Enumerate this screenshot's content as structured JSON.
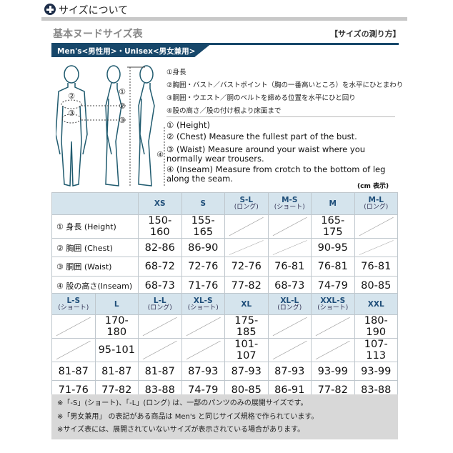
{
  "header": {
    "title": "サイズについて",
    "icon": "plus-circle-icon",
    "subtitle": "基本ヌードサイズ表",
    "howto_link": "【サイズの測り方】"
  },
  "banner": {
    "label": "Men's<男性用>・Unisex<男女兼用>",
    "color": "#17476a"
  },
  "figure": {
    "markers": [
      "①",
      "②",
      "③",
      "②",
      "③",
      "④"
    ]
  },
  "instructions_jp": [
    "①身長",
    "②胸囲・バスト／バストポイント（胸の一番高いところ）を水平にひとまわり",
    "③胴囲・ウエスト／胴のベルトを締める位置を水平にひと回り",
    "④股の高さ／股の付け根より床面まで"
  ],
  "instructions_en": [
    "① (Height)",
    "② (Chest) Measure the fullest part of the bust.",
    "③ (Waist) Measure around your waist where you normally wear trousers.",
    "④ (Inseam) Measure from crotch to the bottom of leg along the seam."
  ],
  "unit": "(cm 表示)",
  "table1": {
    "headers": [
      {
        "size": "XS",
        "sub": ""
      },
      {
        "size": "S",
        "sub": ""
      },
      {
        "size": "S-L",
        "sub": "(ロング)"
      },
      {
        "size": "M-S",
        "sub": "(ショート)"
      },
      {
        "size": "M",
        "sub": ""
      },
      {
        "size": "M-L",
        "sub": "(ロング)"
      }
    ],
    "rows": [
      {
        "label": "① 身長 (Height)",
        "values": [
          "150-160",
          "155-165",
          "",
          "",
          "165-175",
          ""
        ]
      },
      {
        "label": "② 胸囲 (Chest)",
        "values": [
          "82-86",
          "86-90",
          "",
          "",
          "90-95",
          ""
        ]
      },
      {
        "label": "③ 胴囲 (Waist)",
        "values": [
          "68-72",
          "72-76",
          "72-76",
          "76-81",
          "76-81",
          "76-81"
        ]
      },
      {
        "label": "④ 股の高さ(Inseam)",
        "values": [
          "68-73",
          "71-76",
          "77-82",
          "68-73",
          "74-79",
          "80-85"
        ]
      }
    ]
  },
  "table2": {
    "headers": [
      {
        "size": "L-S",
        "sub": "(ショート)"
      },
      {
        "size": "L",
        "sub": ""
      },
      {
        "size": "L-L",
        "sub": "(ロング)"
      },
      {
        "size": "XL-S",
        "sub": "(ショート)"
      },
      {
        "size": "XL",
        "sub": ""
      },
      {
        "size": "XL-L",
        "sub": "(ロング)"
      },
      {
        "size": "XXL-S",
        "sub": "(ショート)"
      },
      {
        "size": "XXL",
        "sub": ""
      }
    ],
    "rows": [
      {
        "values": [
          "",
          "170-180",
          "",
          "",
          "175-185",
          "",
          "",
          "180-190"
        ]
      },
      {
        "values": [
          "",
          "95-101",
          "",
          "",
          "101-107",
          "",
          "",
          "107-113"
        ]
      },
      {
        "values": [
          "81-87",
          "81-87",
          "81-87",
          "87-93",
          "87-93",
          "87-93",
          "93-99",
          "93-99"
        ]
      },
      {
        "values": [
          "71-76",
          "77-82",
          "83-88",
          "74-79",
          "80-85",
          "86-91",
          "77-82",
          "83-88"
        ]
      }
    ]
  },
  "notes": [
    "※「-S」(ショート)、「-L」(ロング) は、一部のパンツのみの展開サイズです。",
    "※「男女兼用」 の表記がある商品は Men's と同じサイズ規格で作られています。",
    "※サイズ表には、展開されていないサイズが表示されている場合があります。"
  ]
}
